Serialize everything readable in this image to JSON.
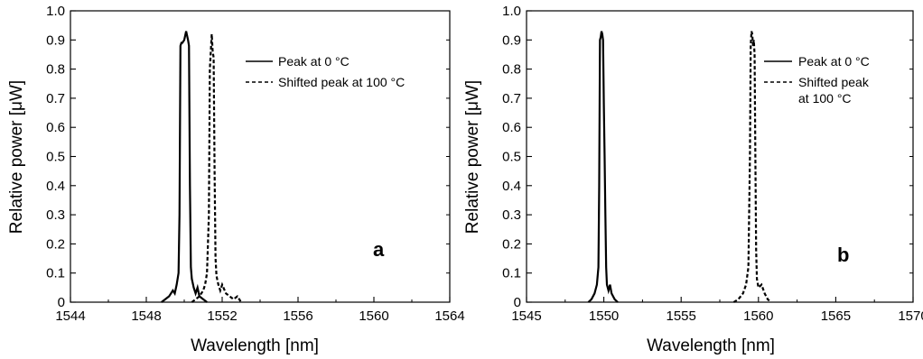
{
  "chart_data": [
    {
      "type": "line",
      "panel_label": "a",
      "xlabel": "Wavelength [nm]",
      "ylabel": "Relative power [μW]",
      "xlim": [
        1544,
        1564
      ],
      "ylim": [
        0,
        1.0
      ],
      "x_ticks": [
        1544,
        1548,
        1552,
        1556,
        1560,
        1564
      ],
      "x_tick_labels": [
        "1544",
        "1548",
        "1552",
        "1556",
        "1560",
        "1564"
      ],
      "y_ticks": [
        0,
        0.1,
        0.2,
        0.3,
        0.4,
        0.5,
        0.6,
        0.7,
        0.8,
        0.9,
        1.0
      ],
      "y_tick_labels": [
        "0",
        "0.1",
        "0.2",
        "0.3",
        "0.4",
        "0.5",
        "0.6",
        "0.7",
        "0.8",
        "0.9",
        "1.0"
      ],
      "grid": false,
      "legend_position": "top-right",
      "series": [
        {
          "name": "Peak at 0 °C",
          "style": "solid",
          "x": [
            1548.8,
            1549.0,
            1549.2,
            1549.4,
            1549.5,
            1549.6,
            1549.7,
            1549.75,
            1549.8,
            1549.85,
            1549.9,
            1550.0,
            1550.1,
            1550.2,
            1550.25,
            1550.3,
            1550.35,
            1550.4,
            1550.5,
            1550.6,
            1550.7,
            1550.8,
            1551.0,
            1551.2
          ],
          "y": [
            0,
            0.01,
            0.02,
            0.04,
            0.03,
            0.06,
            0.1,
            0.3,
            0.88,
            0.89,
            0.89,
            0.9,
            0.93,
            0.9,
            0.88,
            0.4,
            0.12,
            0.08,
            0.05,
            0.03,
            0.05,
            0.02,
            0.01,
            0
          ]
        },
        {
          "name": "Shifted peak at 100 °C",
          "style": "dashed",
          "x": [
            1550.4,
            1550.6,
            1550.8,
            1551.0,
            1551.1,
            1551.2,
            1551.3,
            1551.35,
            1551.4,
            1551.45,
            1551.5,
            1551.55,
            1551.6,
            1551.65,
            1551.7,
            1551.8,
            1551.9,
            1552.0,
            1552.2,
            1552.4,
            1552.6,
            1552.8,
            1553.0
          ],
          "y": [
            0,
            0.01,
            0.02,
            0.04,
            0.06,
            0.1,
            0.3,
            0.8,
            0.86,
            0.92,
            0.86,
            0.84,
            0.45,
            0.15,
            0.09,
            0.06,
            0.04,
            0.06,
            0.03,
            0.02,
            0.01,
            0.02,
            0
          ]
        }
      ]
    },
    {
      "type": "line",
      "panel_label": "b",
      "xlabel": "Wavelength [nm]",
      "ylabel": "Relative power [μW]",
      "xlim": [
        1545,
        1570
      ],
      "ylim": [
        0,
        1.0
      ],
      "x_ticks": [
        1545,
        1550,
        1555,
        1560,
        1565,
        1570
      ],
      "x_tick_labels": [
        "1545",
        "1550",
        "1555",
        "1560",
        "1565",
        "1570"
      ],
      "y_ticks": [
        0,
        0.1,
        0.2,
        0.3,
        0.4,
        0.5,
        0.6,
        0.7,
        0.8,
        0.9,
        1.0
      ],
      "y_tick_labels": [
        "0",
        "0.1",
        "0.2",
        "0.3",
        "0.4",
        "0.5",
        "0.6",
        "0.7",
        "0.8",
        "0.9",
        "1.0"
      ],
      "grid": false,
      "legend_position": "top-right",
      "series": [
        {
          "name": "Peak at 0 °C",
          "style": "solid",
          "x": [
            1549.0,
            1549.2,
            1549.4,
            1549.55,
            1549.65,
            1549.7,
            1549.75,
            1549.8,
            1549.85,
            1549.9,
            1549.95,
            1550.0,
            1550.05,
            1550.1,
            1550.15,
            1550.2,
            1550.3,
            1550.4,
            1550.5,
            1550.7,
            1550.9
          ],
          "y": [
            0,
            0.01,
            0.03,
            0.06,
            0.12,
            0.4,
            0.9,
            0.91,
            0.93,
            0.92,
            0.9,
            0.68,
            0.5,
            0.3,
            0.12,
            0.06,
            0.04,
            0.06,
            0.03,
            0.01,
            0
          ]
        },
        {
          "name": "Shifted peak at 100 °C",
          "style": "dashed",
          "x": [
            1558.4,
            1558.7,
            1559.0,
            1559.2,
            1559.35,
            1559.45,
            1559.5,
            1559.55,
            1559.6,
            1559.65,
            1559.7,
            1559.75,
            1559.8,
            1559.85,
            1559.9,
            1560.0,
            1560.2,
            1560.4,
            1560.6,
            1560.8
          ],
          "y": [
            0,
            0.01,
            0.03,
            0.06,
            0.12,
            0.5,
            0.88,
            0.93,
            0.92,
            0.88,
            0.9,
            0.85,
            0.5,
            0.18,
            0.08,
            0.05,
            0.06,
            0.03,
            0.01,
            0
          ]
        }
      ]
    }
  ],
  "panels": [
    {
      "letter": "a",
      "xlabel": "Wavelength [nm]",
      "ylabel": "Relative power [μW]",
      "legend": {
        "solid_label": "Peak at 0 °C",
        "dashed_label": "Shifted peak at 100 °C"
      }
    },
    {
      "letter": "b",
      "xlabel": "Wavelength [nm]",
      "ylabel": "Relative power [μW]",
      "legend": {
        "solid_label": "Peak at 0 °C",
        "dashed_label_line1": "Shifted peak",
        "dashed_label_line2": "at 100 °C"
      }
    }
  ]
}
